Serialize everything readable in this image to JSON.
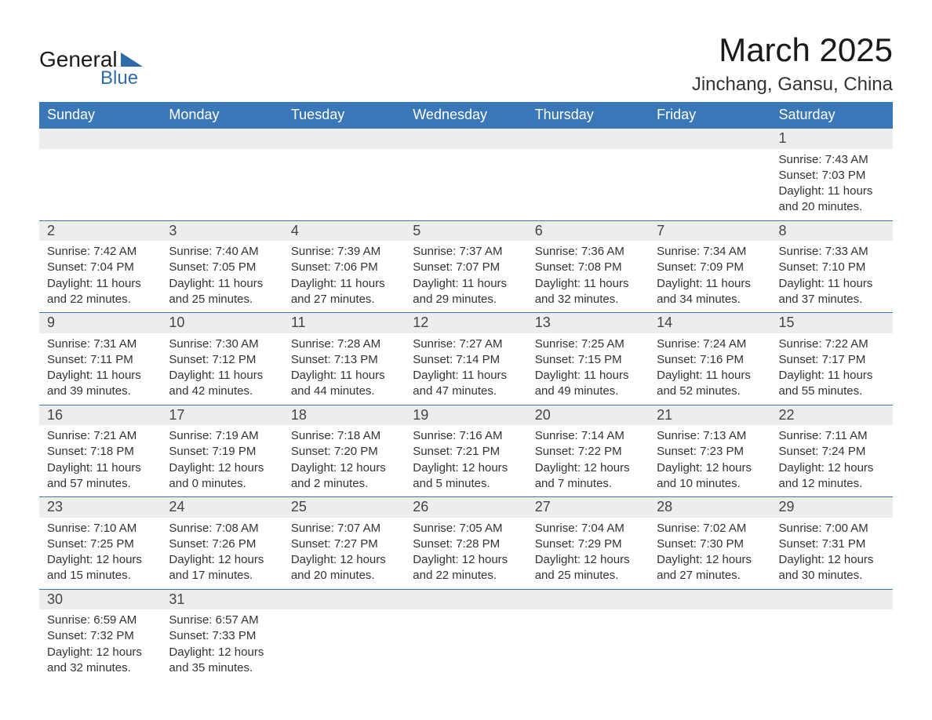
{
  "brand": {
    "general": "General",
    "blue": "Blue"
  },
  "title": "March 2025",
  "location": "Jinchang, Gansu, China",
  "colors": {
    "header_bg": "#3a77b6",
    "header_text": "#ffffff",
    "daynum_bg": "#ededed",
    "row_border": "#3a77b6",
    "body_text": "#333333",
    "brand_blue": "#2e6ba8"
  },
  "weekdays": [
    "Sunday",
    "Monday",
    "Tuesday",
    "Wednesday",
    "Thursday",
    "Friday",
    "Saturday"
  ],
  "weeks": [
    [
      null,
      null,
      null,
      null,
      null,
      null,
      {
        "d": "1",
        "sunrise": "Sunrise: 7:43 AM",
        "sunset": "Sunset: 7:03 PM",
        "dl1": "Daylight: 11 hours",
        "dl2": "and 20 minutes."
      }
    ],
    [
      {
        "d": "2",
        "sunrise": "Sunrise: 7:42 AM",
        "sunset": "Sunset: 7:04 PM",
        "dl1": "Daylight: 11 hours",
        "dl2": "and 22 minutes."
      },
      {
        "d": "3",
        "sunrise": "Sunrise: 7:40 AM",
        "sunset": "Sunset: 7:05 PM",
        "dl1": "Daylight: 11 hours",
        "dl2": "and 25 minutes."
      },
      {
        "d": "4",
        "sunrise": "Sunrise: 7:39 AM",
        "sunset": "Sunset: 7:06 PM",
        "dl1": "Daylight: 11 hours",
        "dl2": "and 27 minutes."
      },
      {
        "d": "5",
        "sunrise": "Sunrise: 7:37 AM",
        "sunset": "Sunset: 7:07 PM",
        "dl1": "Daylight: 11 hours",
        "dl2": "and 29 minutes."
      },
      {
        "d": "6",
        "sunrise": "Sunrise: 7:36 AM",
        "sunset": "Sunset: 7:08 PM",
        "dl1": "Daylight: 11 hours",
        "dl2": "and 32 minutes."
      },
      {
        "d": "7",
        "sunrise": "Sunrise: 7:34 AM",
        "sunset": "Sunset: 7:09 PM",
        "dl1": "Daylight: 11 hours",
        "dl2": "and 34 minutes."
      },
      {
        "d": "8",
        "sunrise": "Sunrise: 7:33 AM",
        "sunset": "Sunset: 7:10 PM",
        "dl1": "Daylight: 11 hours",
        "dl2": "and 37 minutes."
      }
    ],
    [
      {
        "d": "9",
        "sunrise": "Sunrise: 7:31 AM",
        "sunset": "Sunset: 7:11 PM",
        "dl1": "Daylight: 11 hours",
        "dl2": "and 39 minutes."
      },
      {
        "d": "10",
        "sunrise": "Sunrise: 7:30 AM",
        "sunset": "Sunset: 7:12 PM",
        "dl1": "Daylight: 11 hours",
        "dl2": "and 42 minutes."
      },
      {
        "d": "11",
        "sunrise": "Sunrise: 7:28 AM",
        "sunset": "Sunset: 7:13 PM",
        "dl1": "Daylight: 11 hours",
        "dl2": "and 44 minutes."
      },
      {
        "d": "12",
        "sunrise": "Sunrise: 7:27 AM",
        "sunset": "Sunset: 7:14 PM",
        "dl1": "Daylight: 11 hours",
        "dl2": "and 47 minutes."
      },
      {
        "d": "13",
        "sunrise": "Sunrise: 7:25 AM",
        "sunset": "Sunset: 7:15 PM",
        "dl1": "Daylight: 11 hours",
        "dl2": "and 49 minutes."
      },
      {
        "d": "14",
        "sunrise": "Sunrise: 7:24 AM",
        "sunset": "Sunset: 7:16 PM",
        "dl1": "Daylight: 11 hours",
        "dl2": "and 52 minutes."
      },
      {
        "d": "15",
        "sunrise": "Sunrise: 7:22 AM",
        "sunset": "Sunset: 7:17 PM",
        "dl1": "Daylight: 11 hours",
        "dl2": "and 55 minutes."
      }
    ],
    [
      {
        "d": "16",
        "sunrise": "Sunrise: 7:21 AM",
        "sunset": "Sunset: 7:18 PM",
        "dl1": "Daylight: 11 hours",
        "dl2": "and 57 minutes."
      },
      {
        "d": "17",
        "sunrise": "Sunrise: 7:19 AM",
        "sunset": "Sunset: 7:19 PM",
        "dl1": "Daylight: 12 hours",
        "dl2": "and 0 minutes."
      },
      {
        "d": "18",
        "sunrise": "Sunrise: 7:18 AM",
        "sunset": "Sunset: 7:20 PM",
        "dl1": "Daylight: 12 hours",
        "dl2": "and 2 minutes."
      },
      {
        "d": "19",
        "sunrise": "Sunrise: 7:16 AM",
        "sunset": "Sunset: 7:21 PM",
        "dl1": "Daylight: 12 hours",
        "dl2": "and 5 minutes."
      },
      {
        "d": "20",
        "sunrise": "Sunrise: 7:14 AM",
        "sunset": "Sunset: 7:22 PM",
        "dl1": "Daylight: 12 hours",
        "dl2": "and 7 minutes."
      },
      {
        "d": "21",
        "sunrise": "Sunrise: 7:13 AM",
        "sunset": "Sunset: 7:23 PM",
        "dl1": "Daylight: 12 hours",
        "dl2": "and 10 minutes."
      },
      {
        "d": "22",
        "sunrise": "Sunrise: 7:11 AM",
        "sunset": "Sunset: 7:24 PM",
        "dl1": "Daylight: 12 hours",
        "dl2": "and 12 minutes."
      }
    ],
    [
      {
        "d": "23",
        "sunrise": "Sunrise: 7:10 AM",
        "sunset": "Sunset: 7:25 PM",
        "dl1": "Daylight: 12 hours",
        "dl2": "and 15 minutes."
      },
      {
        "d": "24",
        "sunrise": "Sunrise: 7:08 AM",
        "sunset": "Sunset: 7:26 PM",
        "dl1": "Daylight: 12 hours",
        "dl2": "and 17 minutes."
      },
      {
        "d": "25",
        "sunrise": "Sunrise: 7:07 AM",
        "sunset": "Sunset: 7:27 PM",
        "dl1": "Daylight: 12 hours",
        "dl2": "and 20 minutes."
      },
      {
        "d": "26",
        "sunrise": "Sunrise: 7:05 AM",
        "sunset": "Sunset: 7:28 PM",
        "dl1": "Daylight: 12 hours",
        "dl2": "and 22 minutes."
      },
      {
        "d": "27",
        "sunrise": "Sunrise: 7:04 AM",
        "sunset": "Sunset: 7:29 PM",
        "dl1": "Daylight: 12 hours",
        "dl2": "and 25 minutes."
      },
      {
        "d": "28",
        "sunrise": "Sunrise: 7:02 AM",
        "sunset": "Sunset: 7:30 PM",
        "dl1": "Daylight: 12 hours",
        "dl2": "and 27 minutes."
      },
      {
        "d": "29",
        "sunrise": "Sunrise: 7:00 AM",
        "sunset": "Sunset: 7:31 PM",
        "dl1": "Daylight: 12 hours",
        "dl2": "and 30 minutes."
      }
    ],
    [
      {
        "d": "30",
        "sunrise": "Sunrise: 6:59 AM",
        "sunset": "Sunset: 7:32 PM",
        "dl1": "Daylight: 12 hours",
        "dl2": "and 32 minutes."
      },
      {
        "d": "31",
        "sunrise": "Sunrise: 6:57 AM",
        "sunset": "Sunset: 7:33 PM",
        "dl1": "Daylight: 12 hours",
        "dl2": "and 35 minutes."
      },
      null,
      null,
      null,
      null,
      null
    ]
  ]
}
